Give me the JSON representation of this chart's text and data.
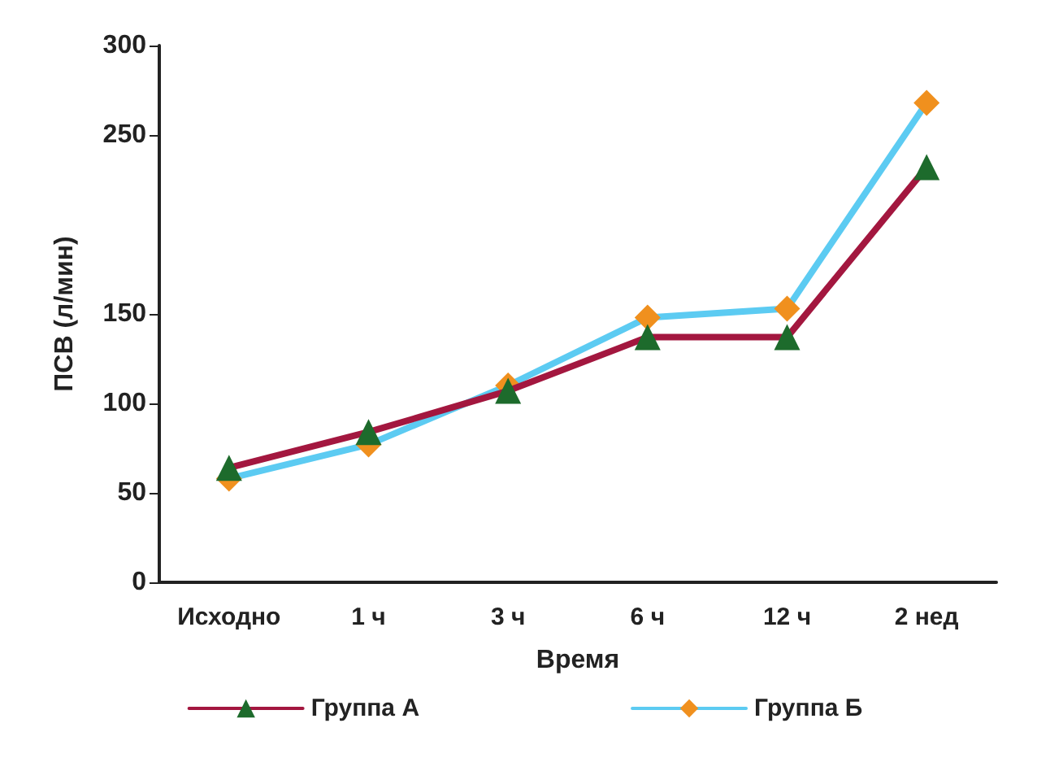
{
  "chart_data": {
    "type": "line",
    "xlabel": "Время",
    "ylabel": "ПСВ (л/мин)",
    "categories": [
      "Исходно",
      "1 ч",
      "3 ч",
      "6 ч",
      "12 ч",
      "2 нед"
    ],
    "ylim": [
      0,
      300
    ],
    "yticks": [
      0,
      50,
      100,
      150,
      250,
      300
    ],
    "grid": false,
    "legend": "bottom",
    "line_style": "solid",
    "series": [
      {
        "name": "Группа А",
        "color": "#a3173f",
        "marker": "triangle",
        "colors": [
          "#1d6b2c",
          "#1d6b2c",
          "#1d6b2c",
          "#1d6b2c",
          "#1d6b2c",
          "#1d6b2c"
        ],
        "values": [
          64,
          84,
          107,
          137,
          137,
          232
        ]
      },
      {
        "name": "Группа Б",
        "color": "#5ccbf2",
        "marker": "diamond",
        "colors": [
          "#f0901e",
          "#f0901e",
          "#f0901e",
          "#f0901e",
          "#f0901e",
          "#f0901e"
        ],
        "values": [
          58,
          77,
          110,
          148,
          153,
          268
        ]
      }
    ]
  }
}
